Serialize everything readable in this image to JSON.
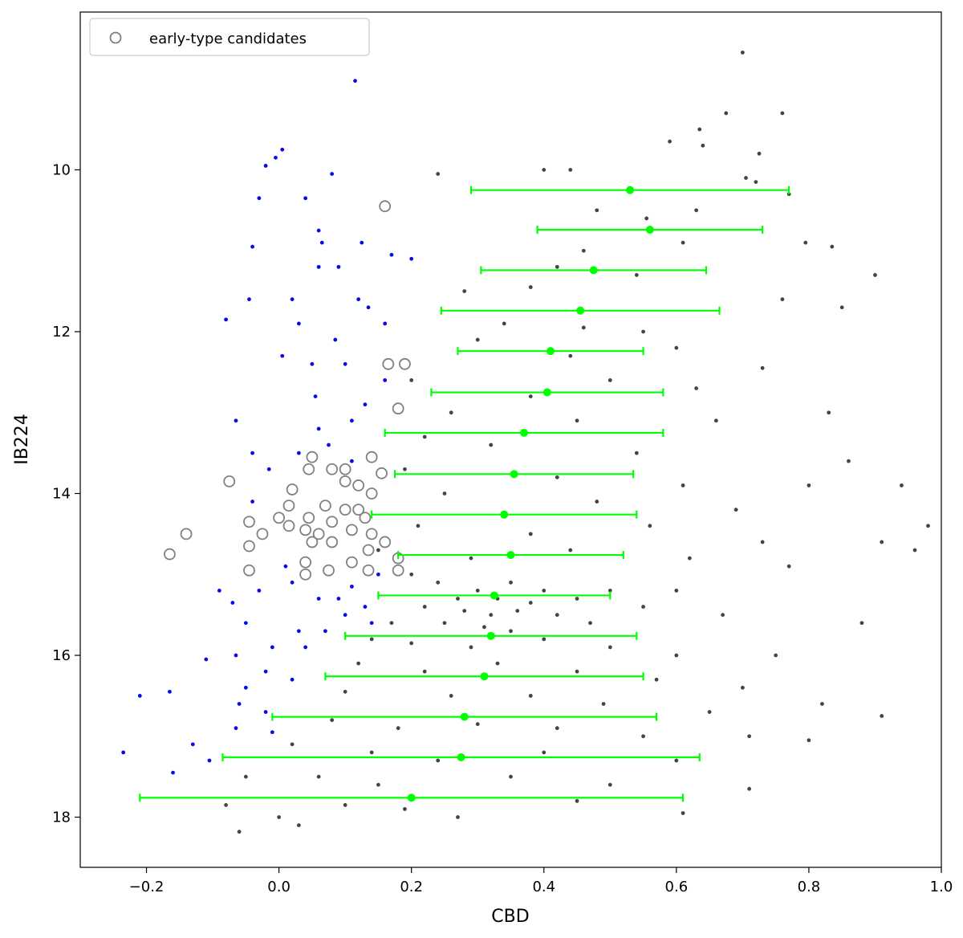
{
  "chart_data": {
    "type": "scatter",
    "xlabel": "CBD",
    "ylabel": "IB224",
    "xlim": [
      -0.3,
      1.0
    ],
    "ylim": [
      18.62,
      8.05
    ],
    "xticks": [
      {
        "value": -0.2,
        "label": "−0.2"
      },
      {
        "value": 0,
        "label": "0.0"
      },
      0.2,
      0.4,
      0.6,
      0.8,
      {
        "value": 1,
        "label": "1.0"
      }
    ],
    "yticks": [
      10,
      12,
      14,
      16,
      18
    ],
    "legend": "upper left",
    "series": [
      {
        "color": "#444444",
        "x": [
          0.7,
          0.675,
          0.76,
          0.635,
          0.59,
          0.64,
          0.725,
          0.4,
          0.44,
          0.24,
          0.705,
          0.72,
          0.77,
          0.63,
          0.48,
          0.555,
          0.61,
          0.795,
          0.835,
          0.46,
          0.42,
          0.54,
          0.9,
          0.28,
          0.38,
          0.76,
          0.85,
          0.34,
          0.46,
          0.55,
          0.3,
          0.6,
          0.44,
          0.73,
          0.2,
          0.5,
          0.63,
          0.38,
          0.26,
          0.45,
          0.66,
          0.83,
          0.22,
          0.32,
          0.54,
          0.86,
          0.19,
          0.42,
          0.61,
          0.8,
          0.94,
          0.25,
          0.48,
          0.69,
          0.21,
          0.38,
          0.56,
          0.73,
          0.91,
          0.98,
          0.15,
          0.29,
          0.44,
          0.62,
          0.77,
          0.96,
          0.2,
          0.24,
          0.3,
          0.35,
          0.4,
          0.27,
          0.33,
          0.38,
          0.45,
          0.5,
          0.22,
          0.28,
          0.32,
          0.36,
          0.42,
          0.55,
          0.6,
          0.17,
          0.25,
          0.31,
          0.35,
          0.47,
          0.67,
          0.88,
          0.14,
          0.2,
          0.29,
          0.4,
          0.5,
          0.6,
          0.75,
          0.12,
          0.22,
          0.33,
          0.45,
          0.57,
          0.7,
          0.1,
          0.26,
          0.38,
          0.49,
          0.65,
          0.82,
          0.08,
          0.18,
          0.3,
          0.42,
          0.55,
          0.71,
          0.91,
          0.02,
          0.14,
          0.24,
          0.4,
          0.6,
          0.8,
          -0.05,
          0.06,
          0.15,
          0.35,
          0.5,
          0.71,
          -0.08,
          0.0,
          0.03,
          0.19,
          0.27,
          0.61,
          -0.06,
          0.1,
          0.45
        ],
        "y": [
          8.55,
          9.3,
          9.3,
          9.5,
          9.65,
          9.7,
          9.8,
          10.0,
          10.0,
          10.05,
          10.1,
          10.15,
          10.3,
          10.5,
          10.5,
          10.6,
          10.9,
          10.9,
          10.95,
          11.0,
          11.2,
          11.3,
          11.3,
          11.5,
          11.45,
          11.6,
          11.7,
          11.9,
          11.95,
          12.0,
          12.1,
          12.2,
          12.3,
          12.45,
          12.6,
          12.6,
          12.7,
          12.8,
          13.0,
          13.1,
          13.1,
          13.0,
          13.3,
          13.4,
          13.5,
          13.6,
          13.7,
          13.8,
          13.9,
          13.9,
          13.9,
          14.0,
          14.1,
          14.2,
          14.4,
          14.5,
          14.4,
          14.6,
          14.6,
          14.4,
          14.7,
          14.8,
          14.7,
          14.8,
          14.9,
          14.7,
          15.0,
          15.1,
          15.2,
          15.1,
          15.2,
          15.3,
          15.3,
          15.35,
          15.3,
          15.2,
          15.4,
          15.45,
          15.5,
          15.45,
          15.5,
          15.4,
          15.2,
          15.6,
          15.6,
          15.65,
          15.7,
          15.6,
          15.5,
          15.6,
          15.8,
          15.85,
          15.9,
          15.8,
          15.9,
          16.0,
          16.0,
          16.1,
          16.2,
          16.1,
          16.2,
          16.3,
          16.4,
          16.45,
          16.5,
          16.5,
          16.6,
          16.7,
          16.6,
          16.8,
          16.9,
          16.85,
          16.9,
          17.0,
          17.0,
          16.75,
          17.1,
          17.2,
          17.3,
          17.2,
          17.3,
          17.05,
          17.5,
          17.5,
          17.6,
          17.5,
          17.6,
          17.65,
          17.85,
          18.0,
          18.1,
          17.9,
          18.0,
          17.95,
          18.18,
          17.85,
          17.8
        ]
      },
      {
        "color": "#0a0ae6",
        "x": [
          0.115,
          0.005,
          -0.005,
          -0.02,
          0.04,
          -0.03,
          0.08,
          0.06,
          0.065,
          -0.04,
          0.125,
          0.06,
          0.09,
          0.17,
          0.2,
          -0.045,
          -0.08,
          0.02,
          0.12,
          0.135,
          0.03,
          0.16,
          0.085,
          0.005,
          0.05,
          0.1,
          0.16,
          0.055,
          0.13,
          0.11,
          -0.065,
          0.06,
          0.075,
          -0.04,
          0.03,
          0.11,
          -0.015,
          -0.04,
          -0.09,
          -0.07,
          -0.03,
          0.02,
          0.06,
          0.09,
          0.13,
          0.1,
          0.14,
          -0.05,
          0.03,
          0.07,
          -0.01,
          0.04,
          -0.065,
          -0.11,
          -0.02,
          0.02,
          -0.05,
          -0.06,
          -0.02,
          -0.21,
          -0.165,
          -0.065,
          -0.01,
          -0.13,
          -0.235,
          -0.105,
          -0.16,
          0.11,
          0.15,
          0.01
        ],
        "y": [
          8.9,
          9.75,
          9.85,
          9.95,
          10.35,
          10.35,
          10.05,
          10.75,
          10.9,
          10.95,
          10.9,
          11.2,
          11.2,
          11.05,
          11.1,
          11.6,
          11.85,
          11.6,
          11.6,
          11.7,
          11.9,
          11.9,
          12.1,
          12.3,
          12.4,
          12.4,
          12.6,
          12.8,
          12.9,
          13.1,
          13.1,
          13.2,
          13.4,
          13.5,
          13.5,
          13.6,
          13.7,
          14.1,
          15.2,
          15.35,
          15.2,
          15.1,
          15.3,
          15.3,
          15.4,
          15.5,
          15.6,
          15.6,
          15.7,
          15.7,
          15.9,
          15.9,
          16.0,
          16.05,
          16.2,
          16.3,
          16.4,
          16.6,
          16.7,
          16.5,
          16.45,
          16.9,
          16.95,
          17.1,
          17.2,
          17.3,
          17.45,
          15.15,
          15.0,
          14.9
        ]
      },
      {
        "name": "early-type candidates",
        "color": "#808080",
        "marker": "open",
        "x": [
          0.16,
          0.165,
          0.19,
          0.18,
          -0.075,
          0.05,
          0.045,
          0.08,
          0.1,
          0.14,
          0.155,
          0.12,
          0.02,
          0.1,
          0.14,
          0.015,
          0.07,
          0.1,
          0.12,
          0.0,
          0.045,
          0.08,
          0.13,
          -0.045,
          0.015,
          0.04,
          0.06,
          0.11,
          0.14,
          -0.14,
          -0.025,
          0.05,
          0.08,
          0.16,
          -0.045,
          0.135,
          0.18,
          -0.165,
          0.04,
          0.11,
          0.075,
          0.135,
          -0.045,
          0.04,
          0.18
        ],
        "y": [
          10.45,
          12.4,
          12.4,
          12.95,
          13.85,
          13.55,
          13.7,
          13.7,
          13.7,
          13.55,
          13.75,
          13.9,
          13.95,
          13.85,
          14.0,
          14.15,
          14.15,
          14.2,
          14.2,
          14.3,
          14.3,
          14.35,
          14.3,
          14.35,
          14.4,
          14.45,
          14.5,
          14.45,
          14.5,
          14.5,
          14.5,
          14.6,
          14.6,
          14.6,
          14.65,
          14.7,
          14.8,
          14.75,
          14.85,
          14.85,
          14.95,
          14.95,
          14.95,
          15.0,
          14.95
        ]
      },
      {
        "color": "#00ff00",
        "x": [
          0.53,
          0.56,
          0.475,
          0.455,
          0.41,
          0.405,
          0.37,
          0.355,
          0.34,
          0.35,
          0.325,
          0.32,
          0.31,
          0.28,
          0.275,
          0.2
        ],
        "y": [
          10.25,
          10.74,
          11.24,
          11.74,
          12.24,
          12.75,
          13.25,
          13.76,
          14.26,
          14.76,
          15.26,
          15.76,
          16.26,
          16.76,
          17.26,
          17.76
        ],
        "xerr": [
          0.24,
          0.17,
          0.17,
          0.21,
          0.14,
          0.175,
          0.21,
          0.18,
          0.2,
          0.17,
          0.175,
          0.22,
          0.24,
          0.29,
          0.36,
          0.41
        ]
      }
    ]
  }
}
